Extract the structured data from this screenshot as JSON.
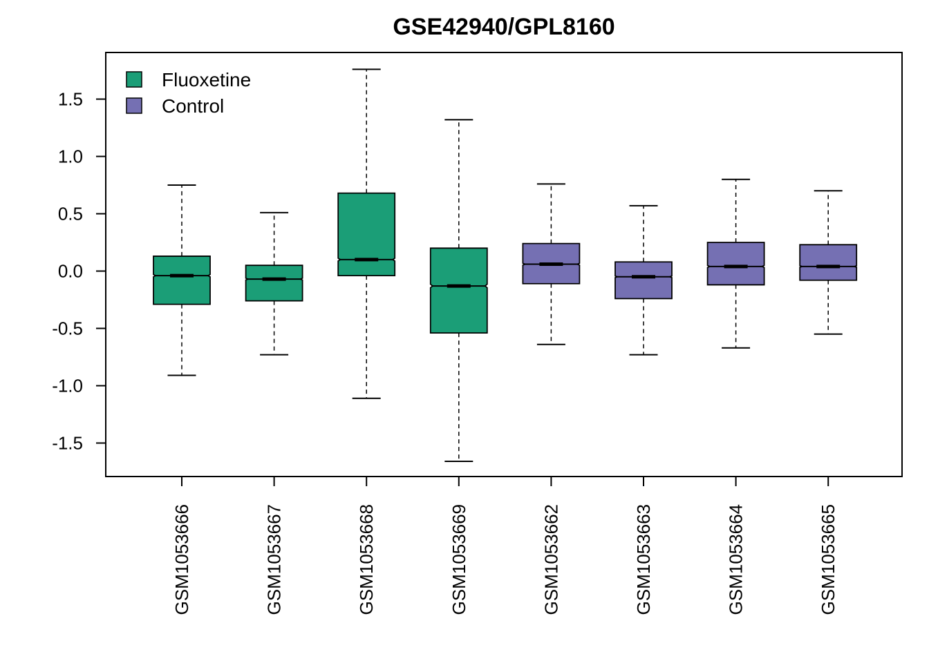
{
  "chart_data": {
    "type": "boxplot",
    "title": "GSE42940/GPL8160",
    "xlabel": "",
    "ylabel": "",
    "ylim": [
      -1.8,
      1.8
    ],
    "yticks": [
      -1.5,
      -1.0,
      -0.5,
      0.0,
      0.5,
      1.0,
      1.5
    ],
    "ytick_labels": [
      "-1.5",
      "-1.0",
      "-0.5",
      "0.0",
      "0.5",
      "1.0",
      "1.5"
    ],
    "notched": true,
    "legend": {
      "position": "top-left",
      "entries": [
        {
          "label": "Fluoxetine",
          "color": "#1B9E77"
        },
        {
          "label": "Control",
          "color": "#7570B3"
        }
      ]
    },
    "categories": [
      "GSM1053666",
      "GSM1053667",
      "GSM1053668",
      "GSM1053669",
      "GSM1053662",
      "GSM1053663",
      "GSM1053664",
      "GSM1053665"
    ],
    "groups": [
      "Fluoxetine",
      "Fluoxetine",
      "Fluoxetine",
      "Fluoxetine",
      "Control",
      "Control",
      "Control",
      "Control"
    ],
    "boxes": [
      {
        "whisker_low": -0.91,
        "q1": -0.29,
        "median": -0.04,
        "q3": 0.13,
        "whisker_high": 0.75
      },
      {
        "whisker_low": -0.73,
        "q1": -0.26,
        "median": -0.07,
        "q3": 0.05,
        "whisker_high": 0.51
      },
      {
        "whisker_low": -1.11,
        "q1": -0.04,
        "median": 0.1,
        "q3": 0.68,
        "whisker_high": 1.76
      },
      {
        "whisker_low": -1.66,
        "q1": -0.54,
        "median": -0.13,
        "q3": 0.2,
        "whisker_high": 1.32
      },
      {
        "whisker_low": -0.64,
        "q1": -0.11,
        "median": 0.06,
        "q3": 0.24,
        "whisker_high": 0.76
      },
      {
        "whisker_low": -0.73,
        "q1": -0.24,
        "median": -0.05,
        "q3": 0.08,
        "whisker_high": 0.57
      },
      {
        "whisker_low": -0.67,
        "q1": -0.12,
        "median": 0.04,
        "q3": 0.25,
        "whisker_high": 0.8
      },
      {
        "whisker_low": -0.55,
        "q1": -0.08,
        "median": 0.04,
        "q3": 0.23,
        "whisker_high": 0.7
      }
    ],
    "notch_halfwidth": [
      0.01,
      0.008,
      0.012,
      0.015,
      0.008,
      0.007,
      0.009,
      0.007
    ],
    "grid": false
  }
}
